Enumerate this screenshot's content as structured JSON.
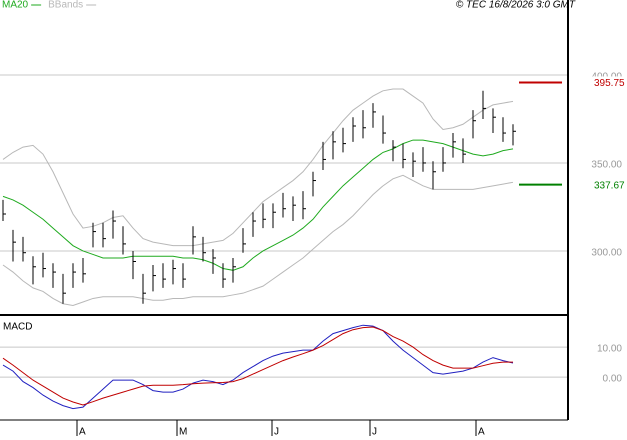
{
  "chart_data": {
    "type": "ohlc",
    "legend": [
      {
        "name": "MA20",
        "color": "#1faa1f"
      },
      {
        "name": "BBands",
        "color": "#b8b8b8"
      }
    ],
    "copyright": "© TEC 16/8/2026 3:0 GMT",
    "x_labels": [
      "A",
      "M",
      "J",
      "J",
      "A"
    ],
    "x_label_index": [
      7.4,
      17.4,
      26.9,
      36.7,
      47.3
    ],
    "ylim": [
      263.6,
      442.6
    ],
    "yticks": [
      {
        "value": 400,
        "label": "400.00"
      },
      {
        "value": 350,
        "label": "350.00"
      },
      {
        "value": 300,
        "label": "300.00"
      }
    ],
    "grid": true,
    "high": [
      329,
      312,
      308,
      297,
      299,
      293,
      287,
      293,
      296,
      316,
      316,
      323,
      314,
      300,
      287,
      292,
      293,
      295,
      293,
      314,
      308,
      301,
      293,
      296,
      313,
      322,
      327,
      327,
      333,
      331,
      334,
      345,
      362,
      368,
      370,
      376,
      380,
      384,
      377,
      363,
      361,
      356,
      359,
      351,
      359,
      367,
      364,
      380,
      391,
      381,
      376,
      372
    ],
    "low": [
      317,
      294,
      294,
      281,
      285,
      279,
      270,
      279,
      282,
      302,
      302,
      307,
      298,
      284,
      270,
      277,
      279,
      281,
      279,
      298,
      294,
      287,
      279,
      282,
      299,
      308,
      313,
      313,
      319,
      317,
      318,
      331,
      346,
      352,
      356,
      362,
      364,
      370,
      361,
      351,
      347,
      342,
      345,
      335,
      345,
      353,
      350,
      364,
      375,
      367,
      362,
      360
    ],
    "close": [
      321,
      305,
      299,
      291,
      290,
      288,
      276,
      288,
      287,
      311,
      307,
      317,
      304,
      294,
      276,
      286,
      284,
      290,
      284,
      308,
      299,
      296,
      284,
      291,
      304,
      317,
      318,
      322,
      324,
      326,
      324,
      340,
      352,
      362,
      361,
      371,
      370,
      379,
      367,
      359,
      352,
      351,
      350,
      345,
      350,
      362,
      355,
      374,
      381,
      376,
      367,
      368
    ],
    "lines": [
      {
        "name": "MA20",
        "color": "#1faa1f",
        "values": [
          331,
          329,
          326,
          322,
          318,
          313,
          308,
          303,
          300,
          298,
          296,
          296,
          296,
          297,
          297,
          297,
          297,
          297,
          296,
          296,
          295,
          293,
          290,
          289,
          291,
          296,
          300,
          303,
          306,
          309,
          313,
          318,
          325,
          331,
          337,
          342,
          347,
          352,
          356,
          358,
          361,
          363,
          363,
          362,
          361,
          359,
          357,
          355,
          354,
          355,
          357,
          358
        ]
      },
      {
        "name": "BBands",
        "color": "#b8b8b8",
        "values": [
          352,
          356,
          359,
          360,
          355,
          345,
          333,
          321,
          313,
          314,
          316,
          319,
          320,
          313,
          307,
          305,
          304,
          303,
          303,
          303,
          304,
          305,
          306,
          310,
          316,
          322,
          328,
          332,
          336,
          340,
          345,
          352,
          360,
          367,
          374,
          380,
          384,
          388,
          391,
          392,
          392,
          388,
          384,
          375,
          369,
          370,
          372,
          376,
          380,
          383,
          384,
          385
        ]
      },
      {
        "name": "BBands",
        "color": "#b8b8b8",
        "values": [
          292,
          288,
          283,
          279,
          277,
          273,
          270,
          269,
          271,
          273,
          274,
          274,
          274,
          274,
          273,
          272,
          272,
          273,
          273,
          274,
          274,
          274,
          274,
          275,
          276,
          278,
          280,
          284,
          288,
          292,
          296,
          301,
          306,
          311,
          315,
          320,
          326,
          332,
          337,
          341,
          343,
          340,
          337,
          335,
          335,
          335,
          335,
          335,
          336,
          337,
          338,
          339
        ]
      }
    ],
    "levels": [
      {
        "value": 395.75,
        "label": "395.75",
        "color": "#c00000"
      },
      {
        "value": 337.67,
        "label": "337.67",
        "color": "#008000"
      }
    ],
    "macd": {
      "title": "MACD",
      "ylim": [
        -14.3,
        20.7
      ],
      "yticks": [
        {
          "value": 10,
          "label": "10.00"
        },
        {
          "value": 0,
          "label": "0.00"
        }
      ],
      "series": [
        {
          "name": "MACD",
          "color": "#2020c0",
          "values": [
            4,
            2,
            -1.5,
            -3.5,
            -6,
            -8,
            -9.5,
            -10.5,
            -10,
            -7,
            -4,
            -1,
            -1,
            -1,
            -2.5,
            -4.5,
            -5,
            -5,
            -4,
            -2,
            -1,
            -1.5,
            -2.5,
            -1,
            1.5,
            3.5,
            5.5,
            7,
            8,
            8.5,
            9,
            9,
            12,
            14.5,
            15.5,
            16.5,
            17.3,
            17,
            15.5,
            12,
            9,
            6.5,
            4,
            1.5,
            1,
            1.5,
            2,
            3,
            5,
            6.5,
            5.5,
            4.7
          ]
        },
        {
          "name": "Signal",
          "color": "#c00000",
          "values": [
            6.3,
            4,
            1.5,
            -1,
            -3,
            -5,
            -7,
            -8.3,
            -9.3,
            -8.2,
            -7,
            -6,
            -5,
            -4,
            -3,
            -2.7,
            -2.7,
            -2.7,
            -2.5,
            -2.2,
            -2,
            -1.9,
            -1.8,
            -1.5,
            -0.5,
            1,
            2.5,
            4,
            5.5,
            6.7,
            7.8,
            9,
            10.5,
            12.5,
            14.5,
            15.8,
            16.5,
            16.7,
            15.5,
            13.5,
            12,
            10,
            7.5,
            5.5,
            4,
            3,
            3,
            3,
            3.8,
            4.6,
            5,
            5
          ]
        }
      ]
    }
  }
}
